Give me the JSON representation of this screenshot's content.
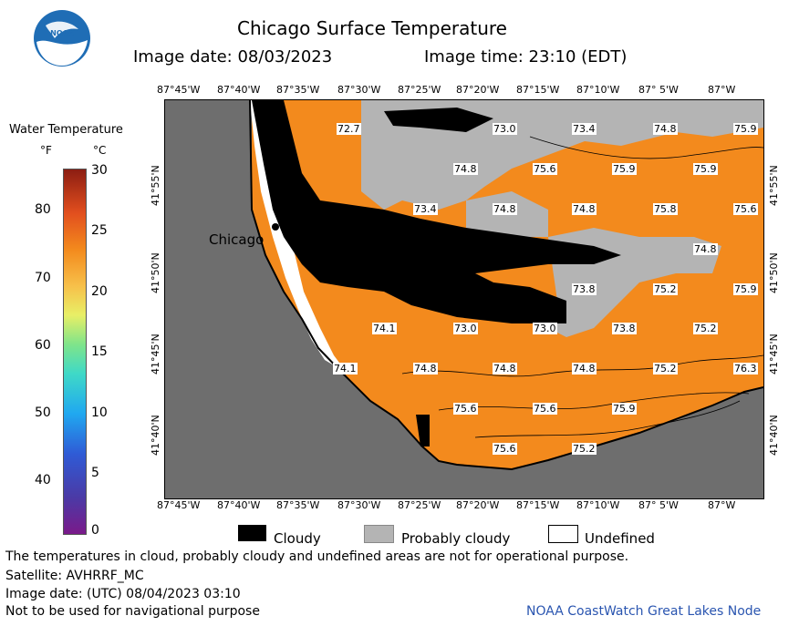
{
  "header": {
    "title": "Chicago Surface Temperature",
    "image_date": "Image date: 08/03/2023",
    "image_time": "Image time: 23:10 (EDT)"
  },
  "logo": {
    "text": "NOAA"
  },
  "colorbar": {
    "title": "Water Temperature",
    "unit_f": "°F",
    "unit_c": "°C",
    "f_ticks": [
      "80",
      "70",
      "60",
      "50",
      "40"
    ],
    "c_ticks": [
      "30",
      "25",
      "20",
      "15",
      "10",
      "5",
      "0"
    ]
  },
  "map": {
    "lon_labels": [
      "87°45'W",
      "87°40'W",
      "87°35'W",
      "87°30'W",
      "87°25'W",
      "87°20'W",
      "87°15'W",
      "87°10'W",
      "87° 5'W",
      "87°W"
    ],
    "lat_labels": [
      "41°55'N",
      "41°50'N",
      "41°45'N",
      "41°40'N"
    ],
    "city": "Chicago",
    "colors": {
      "land": "#6e6e6e",
      "water": "#f38a1d",
      "cloud": "#000000",
      "prob_cloud": "#b4b4b4",
      "undefined": "#ffffff"
    },
    "temps": [
      "72.7",
      "73.0",
      "73.4",
      "74.8",
      "75.9",
      "74.8",
      "75.6",
      "75.9",
      "75.9",
      "73.4",
      "74.8",
      "74.8",
      "75.8",
      "75.6",
      "74.8",
      "73.8",
      "75.2",
      "75.9",
      "74.1",
      "73.0",
      "73.0",
      "73.8",
      "75.2",
      "74.1",
      "74.8",
      "74.8",
      "74.8",
      "75.2",
      "76.3",
      "75.6",
      "75.6",
      "75.9",
      "75.6",
      "75.2"
    ]
  },
  "legend": {
    "cloudy": "Cloudy",
    "prob_cloudy": "Probably cloudy",
    "undefined": "Undefined"
  },
  "footer": {
    "disclaimer": "The temperatures in cloud, probably cloudy and undefined areas are not for operational purpose.",
    "satellite": "Satellite: AVHRRF_MC",
    "utc_date": "Image date: (UTC) 08/04/2023  03:10",
    "nav": "Not to be used for navigational purpose",
    "credit": "NOAA CoastWatch Great Lakes Node"
  }
}
